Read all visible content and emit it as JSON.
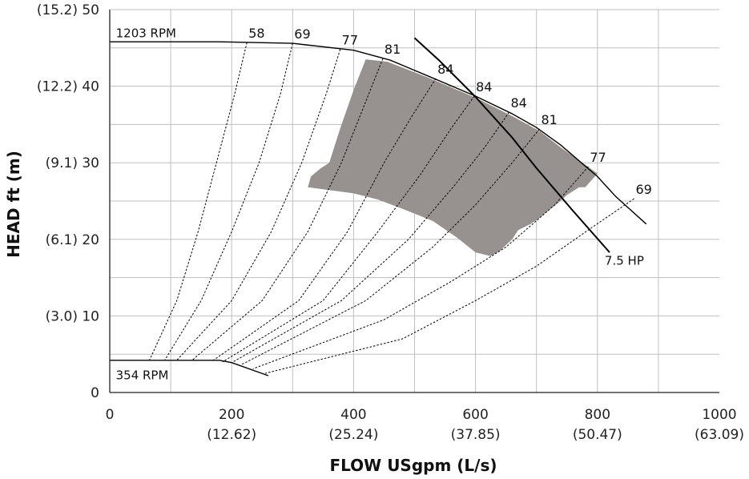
{
  "chart_data": {
    "type": "line",
    "xlabel": "FLOW USgpm (L/s)",
    "ylabel": "HEAD ft (m)",
    "xlim": [
      0,
      1000
    ],
    "ylim": [
      0,
      50
    ],
    "grid": true,
    "x_ticks": [
      {
        "value": 0,
        "label": "0",
        "sub": ""
      },
      {
        "value": 200,
        "label": "200",
        "sub": "(12.62)"
      },
      {
        "value": 400,
        "label": "400",
        "sub": "(25.24)"
      },
      {
        "value": 600,
        "label": "600",
        "sub": "(37.85)"
      },
      {
        "value": 800,
        "label": "800",
        "sub": "(50.47)"
      },
      {
        "value": 1000,
        "label": "1000",
        "sub": "(63.09)"
      }
    ],
    "y_ticks": [
      {
        "value": 0,
        "label": "0"
      },
      {
        "value": 10,
        "label": "(3.0) 10"
      },
      {
        "value": 20,
        "label": "(6.1) 20"
      },
      {
        "value": 30,
        "label": "(9.1) 30"
      },
      {
        "value": 40,
        "label": "(12.2) 40"
      },
      {
        "value": 50,
        "label": "(15.2) 50"
      }
    ],
    "speed_curves": [
      {
        "label": "1203 RPM",
        "points": [
          [
            0,
            45.8
          ],
          [
            180,
            45.8
          ],
          [
            300,
            45.6
          ],
          [
            400,
            44.7
          ],
          [
            460,
            43.4
          ],
          [
            520,
            41.4
          ],
          [
            600,
            38.7
          ],
          [
            660,
            36.4
          ],
          [
            700,
            34.6
          ],
          [
            740,
            32.3
          ],
          [
            800,
            28.2
          ],
          [
            830,
            25.6
          ],
          [
            880,
            22.0
          ]
        ]
      },
      {
        "label": "354 RPM",
        "points": [
          [
            0,
            4.2
          ],
          [
            180,
            4.2
          ],
          [
            200,
            3.9
          ],
          [
            260,
            2.2
          ]
        ]
      }
    ],
    "horsepower_curve": {
      "label": "7.5 HP",
      "points": [
        [
          500,
          46.3
        ],
        [
          540,
          43.4
        ],
        [
          600,
          38.6
        ],
        [
          660,
          33.3
        ],
        [
          700,
          29.3
        ],
        [
          760,
          23.7
        ],
        [
          820,
          18.3
        ],
        [
          855,
          19.8
        ]
      ]
    },
    "efficiency_curves": [
      {
        "label": "58",
        "top": [
          225,
          45.7
        ],
        "points": [
          [
            225,
            45.7
          ],
          [
            205,
            39.0
          ],
          [
            175,
            30.0
          ],
          [
            145,
            21.0
          ],
          [
            110,
            12.0
          ],
          [
            65,
            4.2
          ]
        ]
      },
      {
        "label": "69",
        "top": [
          300,
          45.6
        ],
        "points": [
          [
            300,
            45.6
          ],
          [
            280,
            39.0
          ],
          [
            245,
            30.0
          ],
          [
            200,
            21.0
          ],
          [
            150,
            12.0
          ],
          [
            90,
            4.2
          ]
        ]
      },
      {
        "label": "77",
        "top": [
          378,
          44.8
        ],
        "points": [
          [
            378,
            44.8
          ],
          [
            355,
            39.0
          ],
          [
            315,
            30.0
          ],
          [
            265,
            21.0
          ],
          [
            200,
            12.0
          ],
          [
            110,
            4.2
          ]
        ]
      },
      {
        "label": "81",
        "top": [
          448,
          43.6
        ],
        "points": [
          [
            448,
            43.6
          ],
          [
            420,
            38.0
          ],
          [
            380,
            30.0
          ],
          [
            325,
            21.0
          ],
          [
            250,
            12.0
          ],
          [
            135,
            4.2
          ]
        ]
      },
      {
        "label": "84",
        "top": [
          535,
          41.0
        ],
        "points": [
          [
            535,
            41.0
          ],
          [
            495,
            36.0
          ],
          [
            450,
            30.0
          ],
          [
            390,
            21.0
          ],
          [
            310,
            12.0
          ],
          [
            170,
            4.2
          ]
        ]
      },
      {
        "label": "84",
        "top": [
          598,
          38.7
        ],
        "points": [
          [
            598,
            38.7
          ],
          [
            560,
            34.5
          ],
          [
            510,
            28.5
          ],
          [
            440,
            21.0
          ],
          [
            350,
            12.0
          ],
          [
            185,
            4.0
          ]
        ]
      },
      {
        "label": "84",
        "top": [
          655,
          36.6
        ],
        "points": [
          [
            655,
            36.6
          ],
          [
            615,
            32.0
          ],
          [
            565,
            27.0
          ],
          [
            490,
            20.0
          ],
          [
            380,
            12.0
          ],
          [
            200,
            3.9
          ]
        ]
      },
      {
        "label": "81",
        "top": [
          705,
          34.4
        ],
        "points": [
          [
            705,
            34.4
          ],
          [
            660,
            30.0
          ],
          [
            600,
            24.5
          ],
          [
            530,
            19.0
          ],
          [
            420,
            12.0
          ],
          [
            215,
            3.6
          ]
        ]
      },
      {
        "label": "77",
        "top": [
          785,
          29.5
        ],
        "points": [
          [
            785,
            29.5
          ],
          [
            730,
            24.5
          ],
          [
            650,
            19.0
          ],
          [
            560,
            14.5
          ],
          [
            450,
            9.5
          ],
          [
            235,
            3.1
          ]
        ]
      },
      {
        "label": "69",
        "top": [
          860,
          25.3
        ],
        "points": [
          [
            860,
            25.3
          ],
          [
            790,
            21.5
          ],
          [
            700,
            16.5
          ],
          [
            600,
            12.0
          ],
          [
            480,
            7.0
          ],
          [
            255,
            2.5
          ]
        ]
      }
    ],
    "shaded_region": {
      "color": "#979290",
      "points": [
        [
          420,
          43.5
        ],
        [
          455,
          43.2
        ],
        [
          520,
          41.2
        ],
        [
          600,
          38.5
        ],
        [
          660,
          36.1
        ],
        [
          706,
          34.1
        ],
        [
          740,
          32.0
        ],
        [
          800,
          28.6
        ],
        [
          780,
          26.8
        ],
        [
          770,
          26.8
        ],
        [
          750,
          25.8
        ],
        [
          735,
          24.7
        ],
        [
          720,
          23.8
        ],
        [
          705,
          22.8
        ],
        [
          690,
          22.0
        ],
        [
          670,
          21.2
        ],
        [
          660,
          20.0
        ],
        [
          640,
          18.5
        ],
        [
          625,
          17.8
        ],
        [
          600,
          18.3
        ],
        [
          570,
          20.2
        ],
        [
          530,
          22.4
        ],
        [
          480,
          24.0
        ],
        [
          440,
          25.2
        ],
        [
          400,
          26.0
        ],
        [
          325,
          26.8
        ],
        [
          330,
          28.2
        ],
        [
          345,
          29.2
        ],
        [
          360,
          30.0
        ],
        [
          378,
          34.5
        ],
        [
          400,
          39.5
        ]
      ]
    },
    "annotations": [
      {
        "text": "1203 RPM",
        "x": 10,
        "y": 46.4
      },
      {
        "text": "354 RPM",
        "x": 10,
        "y": 1.7
      },
      {
        "text": "7.5 HP",
        "x": 812,
        "y": 16.7
      }
    ]
  },
  "colors": {
    "grid": "#bfbfbf",
    "axis": "#222222",
    "curve": "#000000",
    "shade": "#979290"
  }
}
